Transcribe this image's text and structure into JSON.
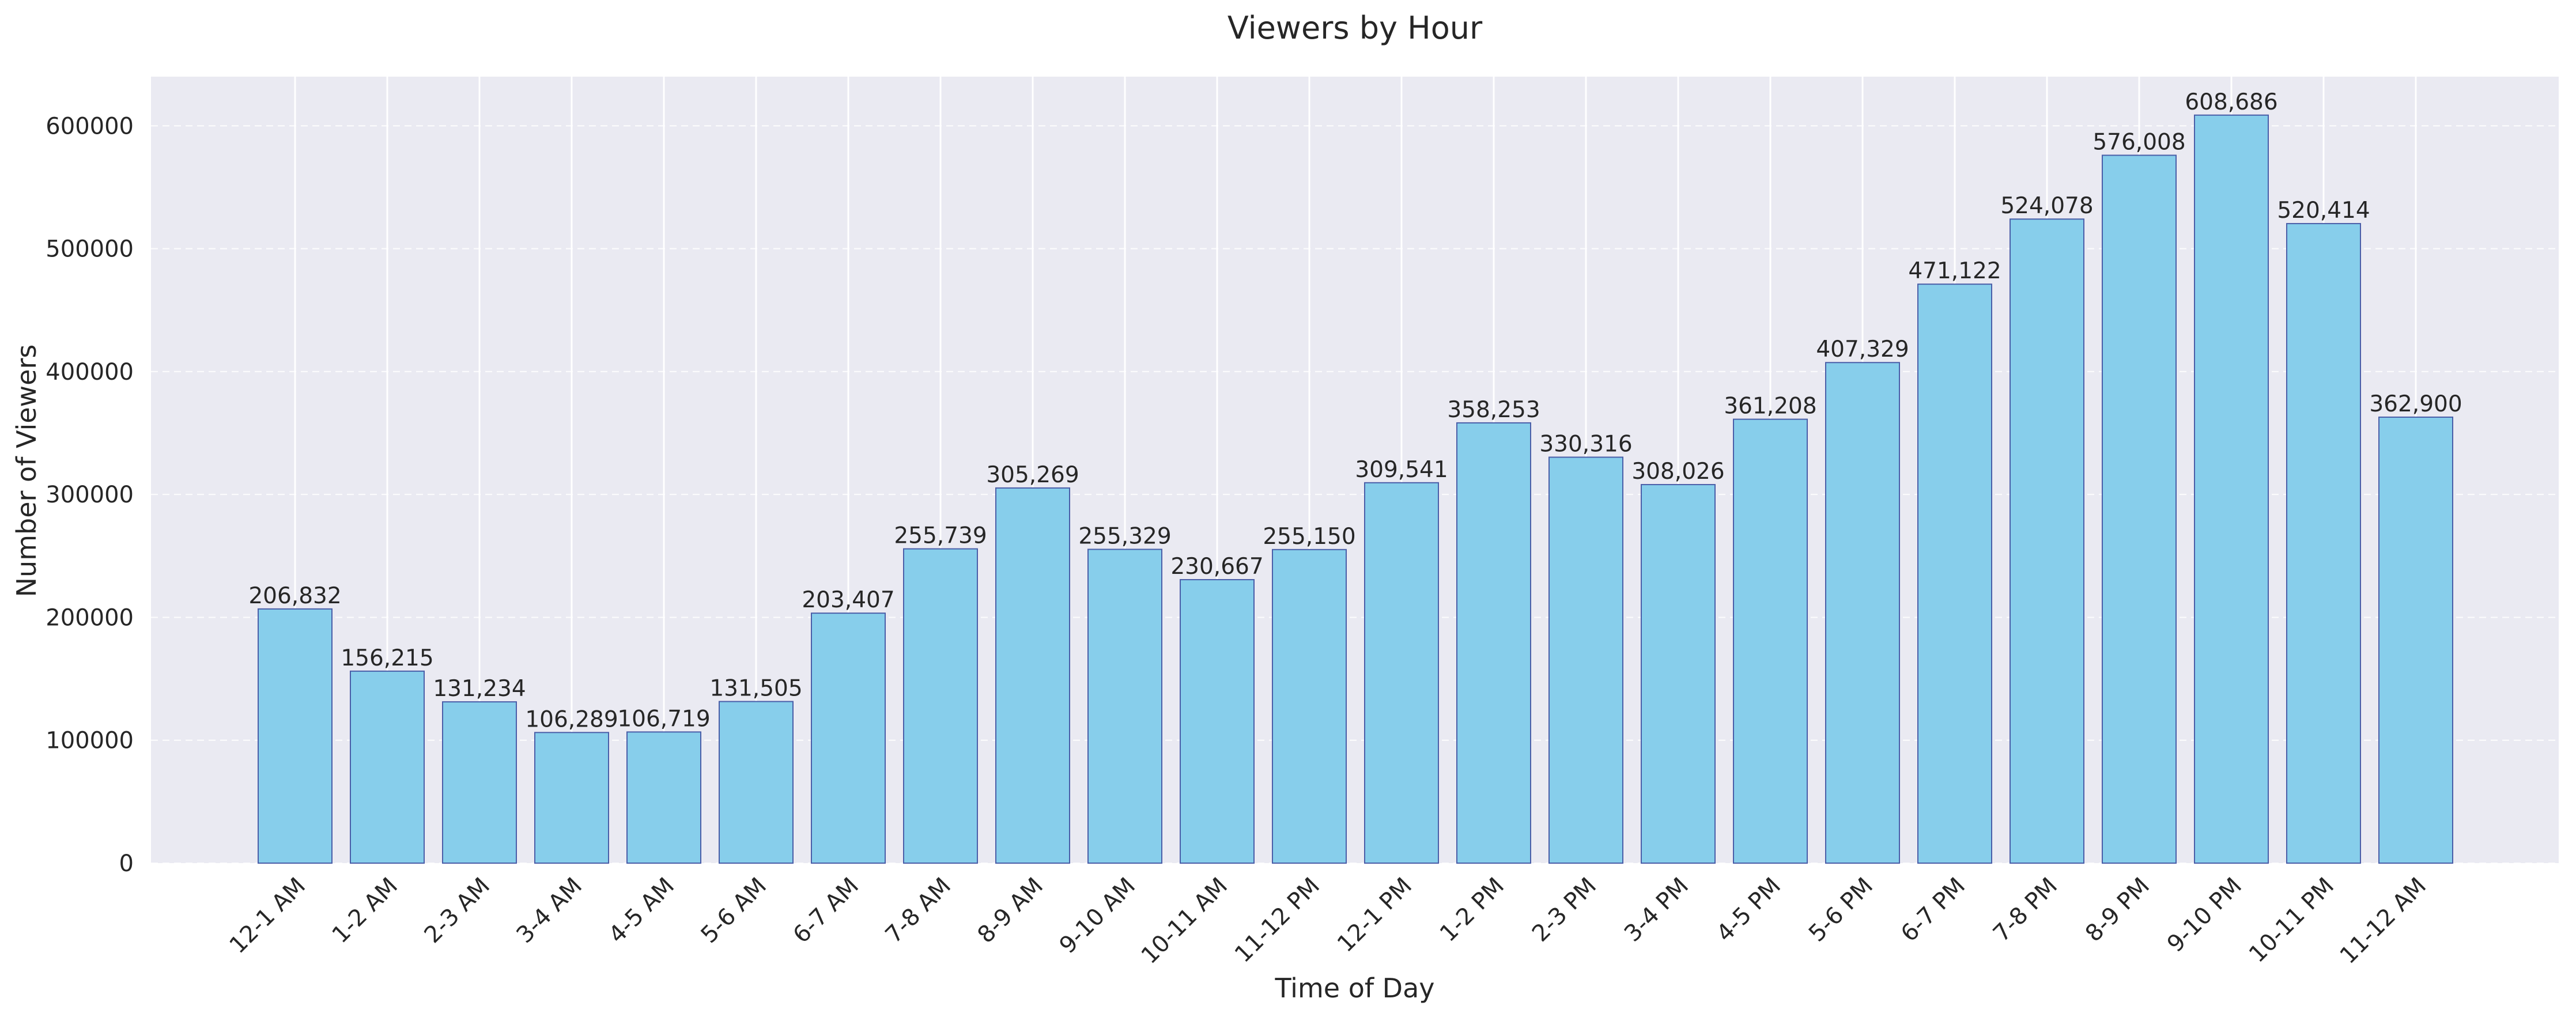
{
  "chart_data": {
    "type": "bar",
    "title": "Viewers by Hour",
    "xlabel": "Time of Day",
    "ylabel": "Number of Viewers",
    "categories": [
      "12-1 AM",
      "1-2 AM",
      "2-3 AM",
      "3-4 AM",
      "4-5 AM",
      "5-6 AM",
      "6-7 AM",
      "7-8 AM",
      "8-9 AM",
      "9-10 AM",
      "10-11 AM",
      "11-12 PM",
      "12-1 PM",
      "1-2 PM",
      "2-3 PM",
      "3-4 PM",
      "4-5 PM",
      "5-6 PM",
      "6-7 PM",
      "7-8 PM",
      "8-9 PM",
      "9-10 PM",
      "10-11 PM",
      "11-12 AM"
    ],
    "values": [
      206832,
      156215,
      131234,
      106289,
      106719,
      131505,
      203407,
      255739,
      305269,
      255329,
      230667,
      255150,
      309541,
      358253,
      330316,
      308026,
      361208,
      407329,
      471122,
      524078,
      576008,
      608686,
      520414,
      362900
    ],
    "value_labels": [
      "206,832",
      "156,215",
      "131,234",
      "106,289",
      "106,719",
      "131,505",
      "203,407",
      "255,739",
      "305,269",
      "255,329",
      "230,667",
      "255,150",
      "309,541",
      "358,253",
      "330,316",
      "308,026",
      "361,208",
      "407,329",
      "471,122",
      "524,078",
      "576,008",
      "608,686",
      "520,414",
      "362,900"
    ],
    "yticks": [
      0,
      100000,
      200000,
      300000,
      400000,
      500000,
      600000
    ],
    "ylim": [
      0,
      640000
    ],
    "grid": true,
    "colors": {
      "bar_fill": "#87CEEB",
      "bar_edge": "#4a5ea8",
      "plot_bg": "#EAEAF2",
      "grid": "#ffffff"
    }
  }
}
